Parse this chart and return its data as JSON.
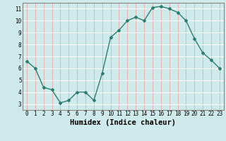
{
  "x": [
    0,
    1,
    2,
    3,
    4,
    5,
    6,
    7,
    8,
    9,
    10,
    11,
    12,
    13,
    14,
    15,
    16,
    17,
    18,
    19,
    20,
    21,
    22,
    23
  ],
  "y": [
    6.6,
    6.0,
    4.4,
    4.2,
    3.1,
    3.3,
    4.0,
    4.0,
    3.3,
    5.6,
    8.6,
    9.2,
    10.0,
    10.3,
    10.0,
    11.1,
    11.2,
    11.0,
    10.7,
    10.0,
    8.5,
    7.3,
    6.7,
    6.0
  ],
  "line_color": "#2e7d6e",
  "marker": "D",
  "marker_size": 2.0,
  "bg_color": "#ceeaea",
  "grid_color_v": "#e8b0b0",
  "grid_color_h": "#ffffff",
  "xlabel": "Humidex (Indice chaleur)",
  "xlim": [
    -0.5,
    23.5
  ],
  "ylim": [
    2.5,
    11.5
  ],
  "yticks": [
    3,
    4,
    5,
    6,
    7,
    8,
    9,
    10,
    11
  ],
  "xticks": [
    0,
    1,
    2,
    3,
    4,
    5,
    6,
    7,
    8,
    9,
    10,
    11,
    12,
    13,
    14,
    15,
    16,
    17,
    18,
    19,
    20,
    21,
    22,
    23
  ],
  "tick_fontsize": 5.5,
  "xlabel_fontsize": 7.5,
  "line_width": 1.0,
  "spine_color": "#888888"
}
